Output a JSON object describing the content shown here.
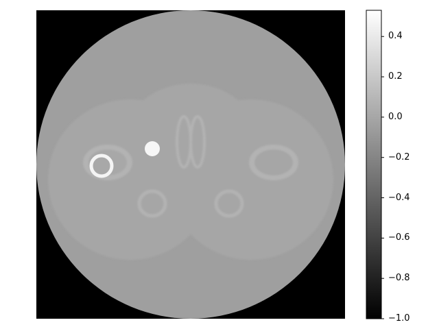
{
  "image": {
    "subject": "phantom-slice",
    "background_value": -1.0,
    "colormap": "gray"
  },
  "colorbar": {
    "min": -1.0,
    "max": 0.53,
    "ticks": [
      {
        "value": 0.4,
        "label": "0.4"
      },
      {
        "value": 0.2,
        "label": "0.2"
      },
      {
        "value": 0.0,
        "label": "0.0"
      },
      {
        "value": -0.2,
        "label": "−0.2"
      },
      {
        "value": -0.4,
        "label": "−0.4"
      },
      {
        "value": -0.6,
        "label": "−0.6"
      },
      {
        "value": -0.8,
        "label": "−0.8"
      },
      {
        "value": -1.0,
        "label": "−1.0"
      }
    ]
  }
}
